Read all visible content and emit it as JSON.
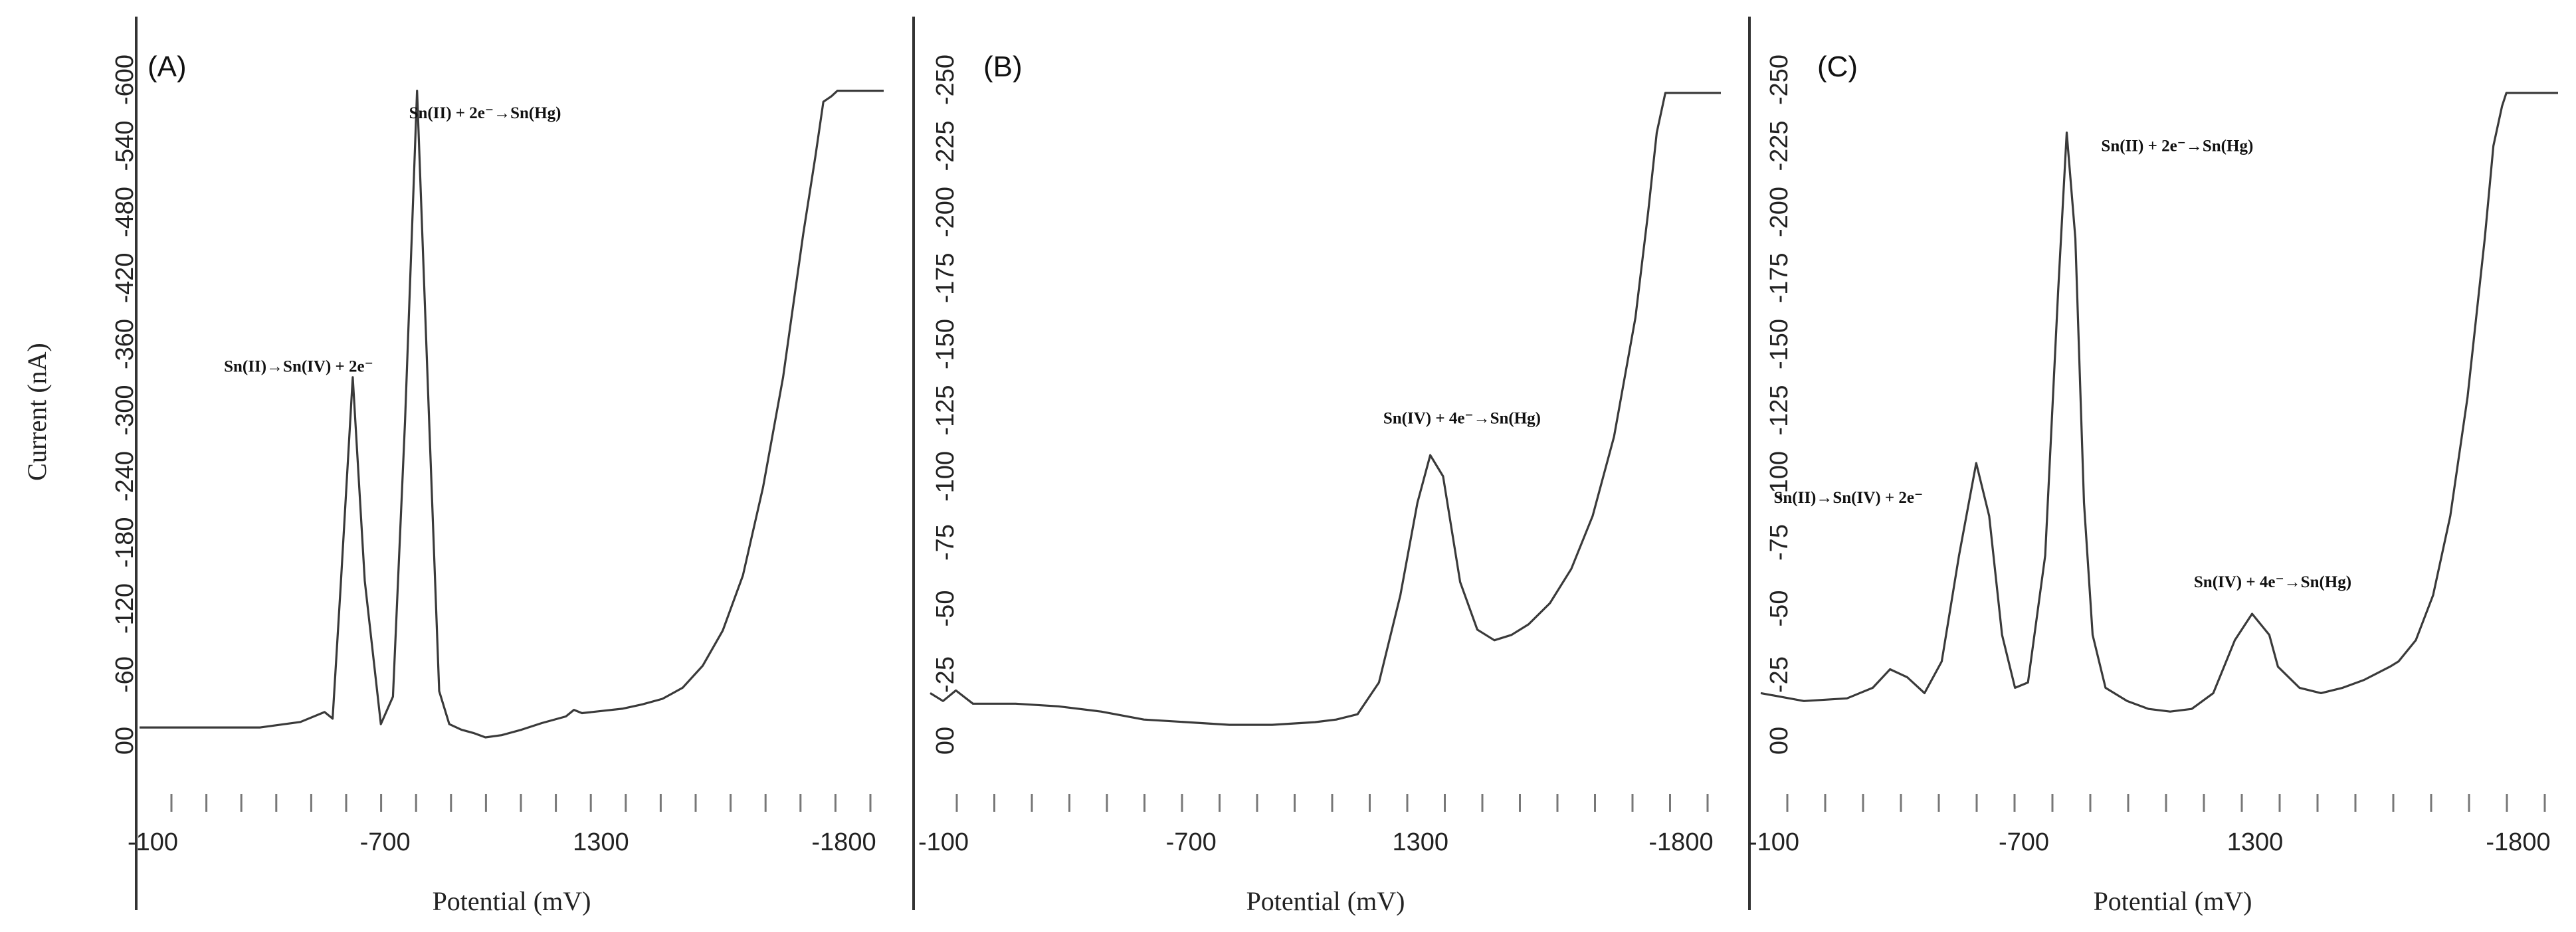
{
  "chart_data": [
    {
      "panel": "(A)",
      "type": "line",
      "xlabel": "Potential (mV)",
      "ylabel": "Current (nA)",
      "x_ticks": [
        "-100",
        "-700",
        "1300",
        "-1800"
      ],
      "y_ticks": [
        "00",
        "-60",
        "-120",
        "-180",
        "-240",
        "-300",
        "-360",
        "-420",
        "-480",
        "-540",
        "-600"
      ],
      "ylim": [
        0,
        600
      ],
      "xlim": [
        100,
        1950
      ],
      "annotations": [
        {
          "text": "Sn(II)→Sn(IV) + 2e⁻",
          "x": 310,
          "y": 335
        },
        {
          "text": "Sn(II) + 2e⁻→Sn(Hg)",
          "x": 770,
          "y": 565
        }
      ],
      "series": [
        {
          "x": [
            100,
            200,
            300,
            400,
            500,
            560,
            580,
            600,
            630,
            660,
            700,
            730,
            760,
            790,
            820,
            845,
            870,
            900,
            930,
            960,
            1000,
            1050,
            1100,
            1160,
            1180,
            1200,
            1250,
            1300,
            1350,
            1400,
            1450,
            1500,
            1550,
            1600,
            1650,
            1700,
            1750,
            1780,
            1800,
            1820,
            1835,
            1850,
            1870,
            1900,
            1950
          ],
          "y": [
            12,
            12,
            12,
            12,
            17,
            26,
            20,
            140,
            330,
            145,
            15,
            40,
            290,
            590,
            290,
            45,
            15,
            10,
            7,
            3,
            5,
            10,
            16,
            22,
            28,
            25,
            27,
            29,
            33,
            38,
            48,
            68,
            100,
            150,
            230,
            330,
            460,
            530,
            580,
            585,
            590,
            590,
            590,
            590,
            590
          ]
        }
      ]
    },
    {
      "panel": "(B)",
      "type": "line",
      "xlabel": "Potential (mV)",
      "ylabel": "",
      "x_ticks": [
        "-100",
        "-700",
        "1300",
        "-1800"
      ],
      "y_ticks": [
        "00",
        "-25",
        "-50",
        "-75",
        "-100",
        "-125",
        "-150",
        "-175",
        "-200",
        "-225",
        "-250"
      ],
      "ylim": [
        0,
        250
      ],
      "xlim": [
        100,
        1950
      ],
      "annotations": [
        {
          "text": "Sn(IV) + 4e⁻→Sn(Hg)",
          "x": 1160,
          "y": 120
        }
      ],
      "series": [
        {
          "x": [
            100,
            130,
            160,
            200,
            300,
            400,
            500,
            600,
            700,
            800,
            900,
            1000,
            1050,
            1100,
            1150,
            1200,
            1240,
            1270,
            1300,
            1340,
            1380,
            1420,
            1460,
            1500,
            1550,
            1600,
            1650,
            1700,
            1750,
            1780,
            1800,
            1820,
            1850,
            1900,
            1950
          ],
          "y": [
            18,
            15,
            19,
            14,
            14,
            13,
            11,
            8,
            7,
            6,
            6,
            7,
            8,
            10,
            22,
            55,
            90,
            108,
            100,
            60,
            42,
            38,
            40,
            44,
            52,
            65,
            85,
            115,
            160,
            200,
            230,
            245,
            245,
            245,
            245
          ]
        }
      ]
    },
    {
      "panel": "(C)",
      "type": "line",
      "xlabel": "Potential (mV)",
      "ylabel": "",
      "x_ticks": [
        "-100",
        "-700",
        "1300",
        "-1800"
      ],
      "y_ticks": [
        "00",
        "-25",
        "-50",
        "-75",
        "-100",
        "-125",
        "-150",
        "-175",
        "-200",
        "-225",
        "-250"
      ],
      "ylim": [
        0,
        250
      ],
      "xlim": [
        100,
        1950
      ],
      "annotations": [
        {
          "text": "Sn(II)→Sn(IV) + 2e⁻",
          "x": 130,
          "y": 90
        },
        {
          "text": "Sn(II) + 2e⁻→Sn(Hg)",
          "x": 890,
          "y": 223
        },
        {
          "text": "Sn(IV) + 4e⁻→Sn(Hg)",
          "x": 1105,
          "y": 58
        }
      ],
      "series": [
        {
          "x": [
            100,
            200,
            300,
            360,
            400,
            440,
            480,
            520,
            560,
            600,
            630,
            660,
            690,
            720,
            760,
            790,
            810,
            830,
            850,
            870,
            900,
            950,
            1000,
            1050,
            1100,
            1150,
            1200,
            1240,
            1280,
            1300,
            1350,
            1400,
            1450,
            1500,
            1560,
            1580,
            1620,
            1660,
            1700,
            1740,
            1780,
            1800,
            1820,
            1830,
            1850,
            1900,
            1950
          ],
          "y": [
            18,
            15,
            16,
            20,
            27,
            24,
            18,
            30,
            70,
            105,
            85,
            40,
            20,
            22,
            70,
            170,
            230,
            190,
            90,
            40,
            20,
            15,
            12,
            11,
            12,
            18,
            38,
            48,
            40,
            28,
            20,
            18,
            20,
            23,
            28,
            30,
            38,
            55,
            85,
            130,
            190,
            225,
            240,
            245,
            245,
            245,
            245
          ]
        }
      ]
    }
  ]
}
